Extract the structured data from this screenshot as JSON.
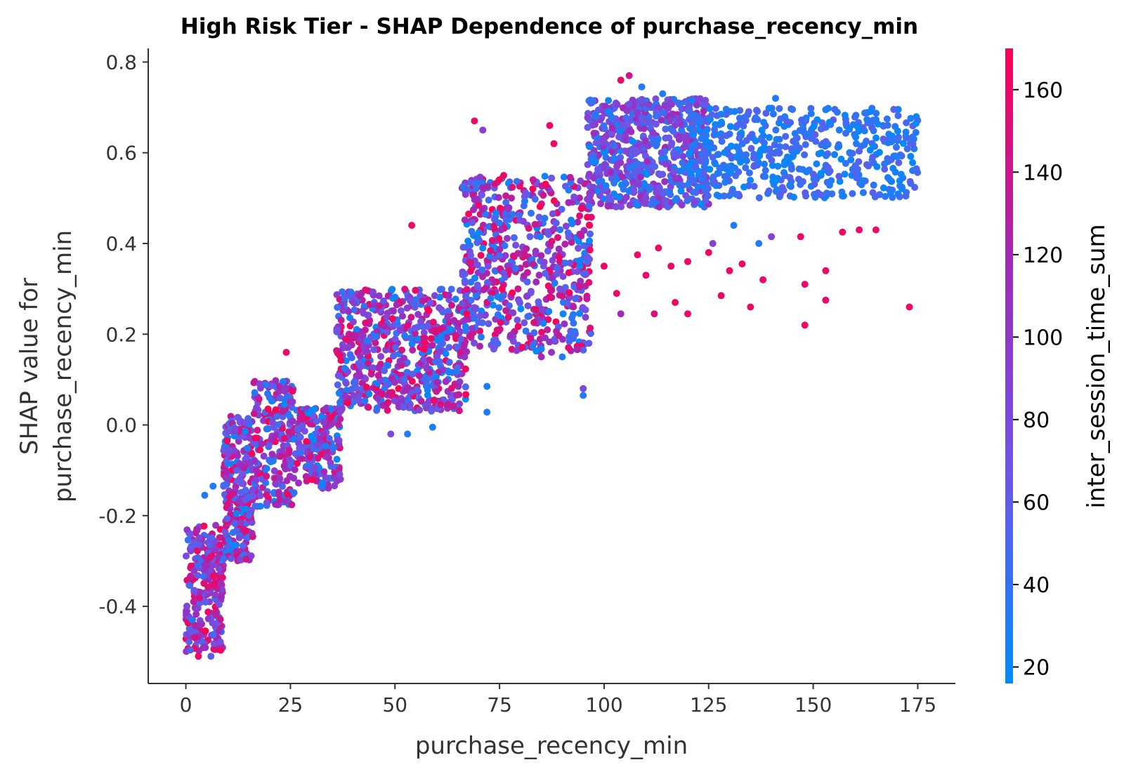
{
  "chart_data": {
    "type": "scatter",
    "title": "High Risk Tier - SHAP Dependence of purchase_recency_min",
    "xlabel": "purchase_recency_min",
    "ylabel_line1": "SHAP value for",
    "ylabel_line2": "purchase_recency_min",
    "colorbar_label": "inter_session_time_sum",
    "xlim": [
      -9,
      184
    ],
    "ylim": [
      -0.57,
      0.83
    ],
    "x_ticks": [
      0,
      25,
      50,
      75,
      100,
      125,
      150,
      175
    ],
    "x_tick_labels": [
      "0",
      "25",
      "50",
      "75",
      "100",
      "125",
      "150",
      "175"
    ],
    "y_ticks": [
      0.8,
      0.6,
      0.4,
      0.2,
      0.0,
      -0.2,
      -0.4
    ],
    "y_tick_labels": [
      "0.8",
      "0.6",
      "0.4",
      "0.2",
      "0.0",
      "-0.2",
      "-0.4"
    ],
    "colorbar_range": [
      16,
      170
    ],
    "colorbar_ticks": [
      160,
      140,
      120,
      100,
      80,
      60,
      40,
      20
    ],
    "colorbar_tick_labels": [
      "160",
      "140",
      "120",
      "100",
      "80",
      "60",
      "40",
      "20"
    ],
    "colormap": [
      "#008bfb",
      "#6e55e8",
      "#a228b8",
      "#ff0052"
    ],
    "clusters": [
      {
        "x": [
          0,
          9
        ],
        "y": [
          -0.5,
          -0.22
        ],
        "n": 260,
        "c": [
          40,
          170
        ]
      },
      {
        "x": [
          9,
          16
        ],
        "y": [
          -0.3,
          0.02
        ],
        "n": 280,
        "c": [
          16,
          170
        ]
      },
      {
        "x": [
          16,
          26
        ],
        "y": [
          -0.18,
          0.1
        ],
        "n": 220,
        "c": [
          16,
          170
        ]
      },
      {
        "x": [
          26,
          37
        ],
        "y": [
          -0.14,
          0.04
        ],
        "n": 200,
        "c": [
          16,
          170
        ]
      },
      {
        "x": [
          36,
          67
        ],
        "y": [
          0.03,
          0.3
        ],
        "n": 620,
        "c": [
          16,
          170
        ]
      },
      {
        "x": [
          66,
          97
        ],
        "y": [
          0.16,
          0.55
        ],
        "n": 620,
        "c": [
          16,
          170
        ]
      },
      {
        "x": [
          96,
          125
        ],
        "y": [
          0.48,
          0.72
        ],
        "n": 620,
        "c": [
          16,
          120
        ]
      },
      {
        "x": [
          120,
          175
        ],
        "y": [
          0.5,
          0.7
        ],
        "n": 520,
        "c": [
          16,
          60
        ]
      }
    ],
    "points": [
      {
        "x": 1.5,
        "y": -0.43,
        "c": 30
      },
      {
        "x": 3,
        "y": -0.51,
        "c": 160
      },
      {
        "x": 6,
        "y": -0.51,
        "c": 60
      },
      {
        "x": 4.5,
        "y": -0.155,
        "c": 30
      },
      {
        "x": 6.5,
        "y": -0.135,
        "c": 30
      },
      {
        "x": 24,
        "y": 0.16,
        "c": 160
      },
      {
        "x": 54,
        "y": 0.44,
        "c": 160
      },
      {
        "x": 53,
        "y": -0.02,
        "c": 30
      },
      {
        "x": 59,
        "y": -0.005,
        "c": 30
      },
      {
        "x": 49,
        "y": -0.02,
        "c": 80
      },
      {
        "x": 72,
        "y": 0.028,
        "c": 30
      },
      {
        "x": 72,
        "y": 0.085,
        "c": 30
      },
      {
        "x": 69,
        "y": 0.67,
        "c": 160
      },
      {
        "x": 71,
        "y": 0.65,
        "c": 90
      },
      {
        "x": 76,
        "y": 0.55,
        "c": 160
      },
      {
        "x": 87,
        "y": 0.66,
        "c": 160
      },
      {
        "x": 88,
        "y": 0.62,
        "c": 160
      },
      {
        "x": 90,
        "y": 0.15,
        "c": 30
      },
      {
        "x": 95,
        "y": 0.065,
        "c": 30
      },
      {
        "x": 95,
        "y": 0.08,
        "c": 80
      },
      {
        "x": 85,
        "y": 0.15,
        "c": 120
      },
      {
        "x": 104,
        "y": 0.76,
        "c": 160
      },
      {
        "x": 106,
        "y": 0.77,
        "c": 140
      },
      {
        "x": 109,
        "y": 0.745,
        "c": 30
      },
      {
        "x": 114,
        "y": 0.73,
        "c": 30
      },
      {
        "x": 121,
        "y": 0.715,
        "c": 30
      },
      {
        "x": 141,
        "y": 0.72,
        "c": 30
      },
      {
        "x": 153,
        "y": 0.695,
        "c": 30
      },
      {
        "x": 173,
        "y": 0.26,
        "c": 160
      },
      {
        "x": 148,
        "y": 0.22,
        "c": 160
      },
      {
        "x": 153,
        "y": 0.34,
        "c": 160
      },
      {
        "x": 153,
        "y": 0.275,
        "c": 160
      },
      {
        "x": 148,
        "y": 0.31,
        "c": 160
      },
      {
        "x": 147,
        "y": 0.415,
        "c": 160
      },
      {
        "x": 157,
        "y": 0.425,
        "c": 160
      },
      {
        "x": 161,
        "y": 0.43,
        "c": 160
      },
      {
        "x": 165,
        "y": 0.43,
        "c": 160
      },
      {
        "x": 135,
        "y": 0.26,
        "c": 160
      },
      {
        "x": 138,
        "y": 0.32,
        "c": 160
      },
      {
        "x": 128,
        "y": 0.285,
        "c": 160
      },
      {
        "x": 120,
        "y": 0.245,
        "c": 160
      },
      {
        "x": 117,
        "y": 0.27,
        "c": 160
      },
      {
        "x": 112,
        "y": 0.245,
        "c": 150
      },
      {
        "x": 104,
        "y": 0.245,
        "c": 120
      },
      {
        "x": 103,
        "y": 0.29,
        "c": 160
      },
      {
        "x": 110,
        "y": 0.33,
        "c": 160
      },
      {
        "x": 116,
        "y": 0.35,
        "c": 160
      },
      {
        "x": 120,
        "y": 0.36,
        "c": 160
      },
      {
        "x": 125,
        "y": 0.38,
        "c": 160
      },
      {
        "x": 133,
        "y": 0.355,
        "c": 160
      },
      {
        "x": 126,
        "y": 0.4,
        "c": 90
      },
      {
        "x": 140,
        "y": 0.415,
        "c": 90
      },
      {
        "x": 130,
        "y": 0.34,
        "c": 160
      },
      {
        "x": 108,
        "y": 0.375,
        "c": 160
      },
      {
        "x": 113,
        "y": 0.39,
        "c": 160
      },
      {
        "x": 100,
        "y": 0.35,
        "c": 160
      },
      {
        "x": 131,
        "y": 0.44,
        "c": 30
      },
      {
        "x": 137,
        "y": 0.4,
        "c": 30
      }
    ]
  }
}
